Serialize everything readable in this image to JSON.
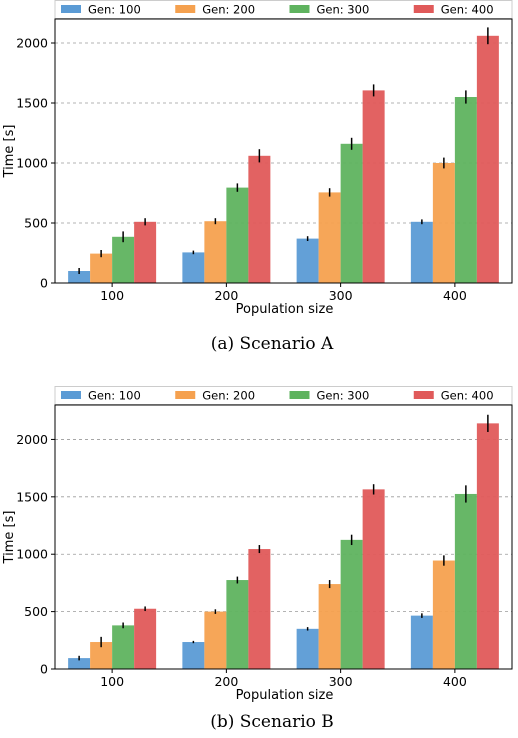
{
  "chart_data": [
    {
      "type": "bar",
      "caption": "(a) Scenario A",
      "xlabel": "Population size",
      "ylabel": "Time [s]",
      "categories": [
        "100",
        "200",
        "300",
        "400"
      ],
      "ylim": [
        0,
        2200
      ],
      "yticks": [
        0,
        500,
        1000,
        1500,
        2000
      ],
      "grid": "horizontal dashed",
      "legend": "top (above plot, 4 columns)",
      "series": [
        {
          "name": "Gen: 100",
          "color": "#5b9bd5",
          "values": [
            100,
            255,
            370,
            510
          ],
          "errors": [
            25,
            15,
            20,
            20
          ]
        },
        {
          "name": "Gen: 200",
          "color": "#f5a14f",
          "values": [
            245,
            515,
            755,
            1000
          ],
          "errors": [
            30,
            25,
            35,
            45
          ]
        },
        {
          "name": "Gen: 300",
          "color": "#5fb35f",
          "values": [
            385,
            795,
            1160,
            1550
          ],
          "errors": [
            45,
            35,
            50,
            55
          ]
        },
        {
          "name": "Gen: 400",
          "color": "#e05a5a",
          "values": [
            510,
            1060,
            1605,
            2060
          ],
          "errors": [
            30,
            55,
            50,
            70
          ]
        }
      ]
    },
    {
      "type": "bar",
      "caption": "(b) Scenario B",
      "xlabel": "Population size",
      "ylabel": "Time [s]",
      "categories": [
        "100",
        "200",
        "300",
        "400"
      ],
      "ylim": [
        0,
        2300
      ],
      "yticks": [
        0,
        500,
        1000,
        1500,
        2000
      ],
      "grid": "horizontal dashed",
      "legend": "top (above plot, 4 columns)",
      "series": [
        {
          "name": "Gen: 100",
          "color": "#5b9bd5",
          "values": [
            95,
            235,
            350,
            465
          ],
          "errors": [
            20,
            10,
            15,
            20
          ]
        },
        {
          "name": "Gen: 200",
          "color": "#f5a14f",
          "values": [
            235,
            500,
            740,
            945
          ],
          "errors": [
            45,
            20,
            35,
            45
          ]
        },
        {
          "name": "Gen: 300",
          "color": "#5fb35f",
          "values": [
            380,
            775,
            1125,
            1525
          ],
          "errors": [
            25,
            30,
            45,
            75
          ]
        },
        {
          "name": "Gen: 400",
          "color": "#e05a5a",
          "values": [
            525,
            1045,
            1565,
            2140
          ],
          "errors": [
            20,
            35,
            45,
            75
          ]
        }
      ]
    }
  ]
}
